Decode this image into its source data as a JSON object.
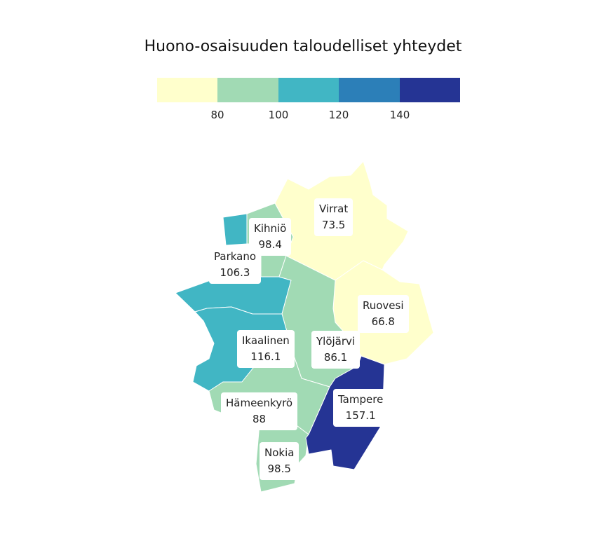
{
  "title": "Huono-osaisuuden taloudelliset yhteydet",
  "legend": {
    "colors": [
      "#ffffcc",
      "#a1dab4",
      "#41b6c4",
      "#2c7fb8",
      "#253494"
    ],
    "ticks": [
      "80",
      "100",
      "120",
      "140"
    ]
  },
  "regions": [
    {
      "name": "Virrat",
      "value": "73.5",
      "color": "#ffffcc"
    },
    {
      "name": "Kihniö",
      "value": "98.4",
      "color": "#a1dab4"
    },
    {
      "name": "Parkano",
      "value": "106.3",
      "color": "#41b6c4"
    },
    {
      "name": "Ruovesi",
      "value": "66.8",
      "color": "#ffffcc"
    },
    {
      "name": "Ikaalinen",
      "value": "116.1",
      "color": "#41b6c4"
    },
    {
      "name": "Ylöjärvi",
      "value": "86.1",
      "color": "#a1dab4"
    },
    {
      "name": "Hämeenkyrö",
      "value": "88",
      "color": "#a1dab4"
    },
    {
      "name": "Tampere",
      "value": "157.1",
      "color": "#253494"
    },
    {
      "name": "Nokia",
      "value": "98.5",
      "color": "#a1dab4"
    }
  ]
}
